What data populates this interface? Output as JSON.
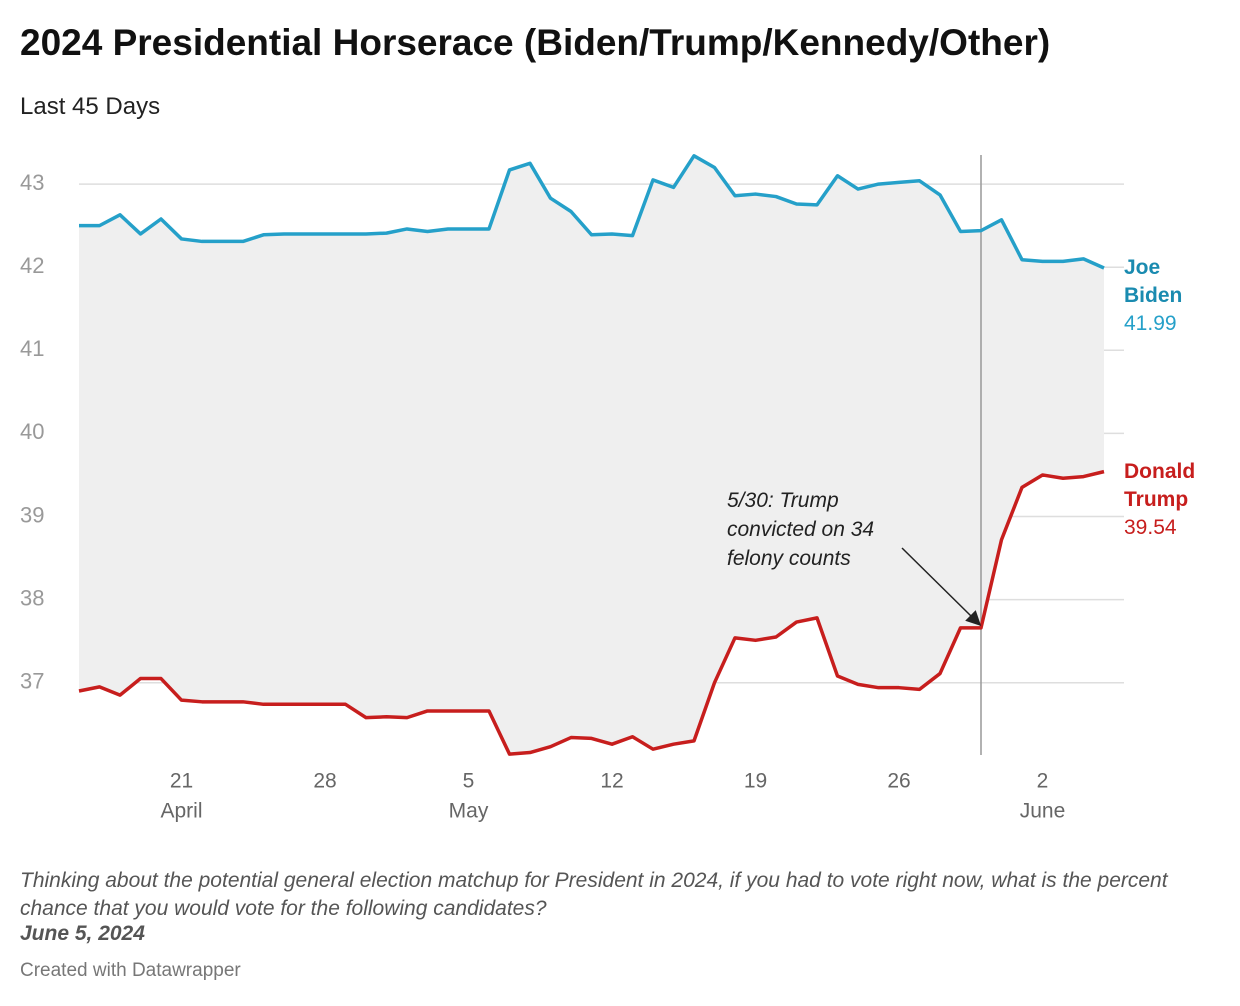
{
  "chart_data": {
    "type": "line",
    "title": "2024 Presidential Horserace (Biden/Trump/Kennedy/Other)",
    "subtitle": "Last 45 Days",
    "x": [
      "04-16",
      "04-17",
      "04-18",
      "04-19",
      "04-20",
      "04-21",
      "04-22",
      "04-23",
      "04-24",
      "04-25",
      "04-26",
      "04-27",
      "04-28",
      "04-29",
      "04-30",
      "05-01",
      "05-02",
      "05-03",
      "05-04",
      "05-05",
      "05-06",
      "05-07",
      "05-08",
      "05-09",
      "05-10",
      "05-11",
      "05-12",
      "05-13",
      "05-14",
      "05-15",
      "05-16",
      "05-17",
      "05-18",
      "05-19",
      "05-20",
      "05-21",
      "05-22",
      "05-23",
      "05-24",
      "05-25",
      "05-26",
      "05-27",
      "05-28",
      "05-29",
      "05-30",
      "05-31",
      "06-01",
      "06-02",
      "06-03",
      "06-04",
      "06-05"
    ],
    "xlim": [
      "04-16",
      "06-05"
    ],
    "xticks": [
      {
        "value": "04-21",
        "label": "21"
      },
      {
        "value": "04-28",
        "label": "28"
      },
      {
        "value": "05-05",
        "label": "5"
      },
      {
        "value": "05-12",
        "label": "12"
      },
      {
        "value": "05-19",
        "label": "19"
      },
      {
        "value": "05-26",
        "label": "26"
      },
      {
        "value": "06-02",
        "label": "2"
      }
    ],
    "month_labels": [
      {
        "value": "04-21",
        "label": "April"
      },
      {
        "value": "05-05",
        "label": "May"
      },
      {
        "value": "06-02",
        "label": "June"
      }
    ],
    "series": [
      {
        "name": "Joe Biden",
        "color": "#25a0c9",
        "label_color": "#1a8bb0",
        "values": [
          42.5,
          42.5,
          42.63,
          42.4,
          42.58,
          42.34,
          42.31,
          42.31,
          42.31,
          42.39,
          42.4,
          42.4,
          42.4,
          42.4,
          42.4,
          42.41,
          42.46,
          42.43,
          42.46,
          42.46,
          42.46,
          43.17,
          43.25,
          42.83,
          42.67,
          42.39,
          42.4,
          42.38,
          43.05,
          42.96,
          43.34,
          43.2,
          42.86,
          42.88,
          42.85,
          42.76,
          42.75,
          43.1,
          42.94,
          43.0,
          43.02,
          43.04,
          42.87,
          42.43,
          42.44,
          42.57,
          42.09,
          42.07,
          42.07,
          42.1,
          41.99
        ]
      },
      {
        "name": "Donald Trump",
        "color": "#c71e1d",
        "label_color": "#c71e1d",
        "values": [
          36.9,
          36.95,
          36.85,
          37.05,
          37.05,
          36.79,
          36.77,
          36.77,
          36.77,
          36.74,
          36.74,
          36.74,
          36.74,
          36.74,
          36.58,
          36.59,
          36.58,
          36.66,
          36.66,
          36.66,
          36.66,
          36.14,
          36.16,
          36.23,
          36.34,
          36.33,
          36.26,
          36.35,
          36.2,
          36.26,
          36.3,
          37.0,
          37.54,
          37.51,
          37.55,
          37.73,
          37.78,
          37.08,
          36.98,
          36.94,
          36.94,
          36.92,
          37.11,
          37.66,
          37.66,
          38.72,
          39.35,
          39.5,
          39.46,
          39.48,
          39.54
        ]
      }
    ],
    "ylim": [
      36.13,
      43.35
    ],
    "yticks": [
      37,
      38,
      39,
      40,
      41,
      42,
      43
    ],
    "grid": true,
    "area_between": true,
    "annotation": {
      "text": "5/30: Trump convicted on 34 felony counts",
      "x": "05-30"
    },
    "notes": "Thinking about the potential general election matchup for President in 2024, if you had to vote right now, what is the percent chance that you would vote for the following candidates?",
    "date": "June 5, 2024",
    "credit": "Created with Datawrapper"
  }
}
